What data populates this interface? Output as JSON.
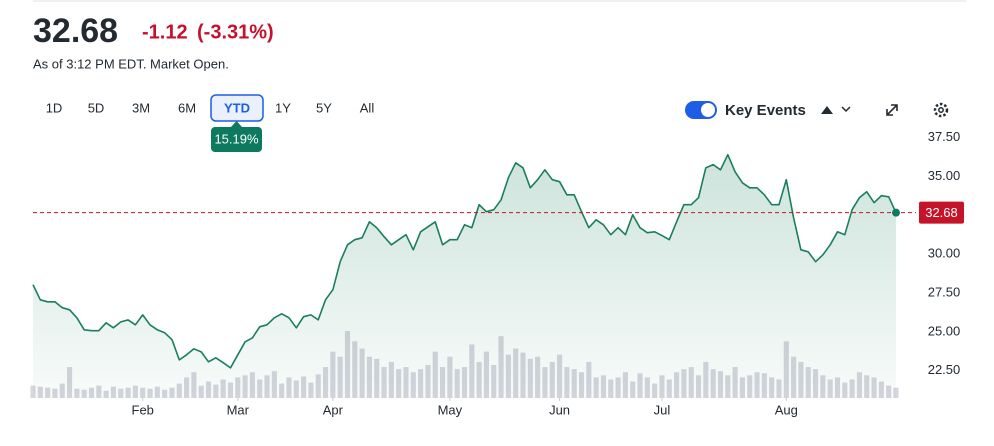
{
  "header": {
    "price": "32.68",
    "change": "-1.12",
    "change_pct": "(-3.31%)",
    "status": "As of 3:12 PM EDT. Market Open."
  },
  "range_buttons": [
    {
      "label": "1D"
    },
    {
      "label": "5D"
    },
    {
      "label": "3M"
    },
    {
      "label": "6M"
    },
    {
      "label": "YTD",
      "selected": true
    },
    {
      "label": "1Y"
    },
    {
      "label": "5Y"
    },
    {
      "label": "All"
    }
  ],
  "range_return": "15.19%",
  "key_events": "Key Events",
  "chart_data": {
    "type": "line",
    "color": "#1a7f5a",
    "volume_color": "#d6d6de",
    "values": [
      28.04,
      27.07,
      26.94,
      26.94,
      26.56,
      26.43,
      25.91,
      25.14,
      25.08,
      25.08,
      25.59,
      25.27,
      25.65,
      25.78,
      25.46,
      26.1,
      25.46,
      25.14,
      24.95,
      24.5,
      23.2,
      23.53,
      23.92,
      23.72,
      23.08,
      23.34,
      23.02,
      22.69,
      23.53,
      24.37,
      24.62,
      25.33,
      25.46,
      25.91,
      26.17,
      25.91,
      25.27,
      25.98,
      26.1,
      25.78,
      27.07,
      27.72,
      29.52,
      30.61,
      30.94,
      31.06,
      32.09,
      31.71,
      31.13,
      30.61,
      30.94,
      31.26,
      30.29,
      31.45,
      31.77,
      32.09,
      30.61,
      30.94,
      30.94,
      31.9,
      31.71,
      33.19,
      32.74,
      32.87,
      33.51,
      34.93,
      35.89,
      35.57,
      34.28,
      34.8,
      35.44,
      34.8,
      34.67,
      33.83,
      33.83,
      32.74,
      31.71,
      32.22,
      31.9,
      31.26,
      31.71,
      31.26,
      32.54,
      31.71,
      31.39,
      31.45,
      31.2,
      30.94,
      32.09,
      33.19,
      33.19,
      33.64,
      35.57,
      35.77,
      35.44,
      36.41,
      35.31,
      34.6,
      34.28,
      34.28,
      33.83,
      33.19,
      33.19,
      34.8,
      32.35,
      30.29,
      30.16,
      29.52,
      29.97,
      30.61,
      31.45,
      31.26,
      32.87,
      33.64,
      34.03,
      33.32,
      33.77,
      33.7,
      32.68
    ],
    "volume": [
      12,
      11,
      10,
      9,
      14,
      30,
      9,
      8,
      10,
      12,
      7,
      11,
      9,
      10,
      12,
      10,
      9,
      11,
      8,
      10,
      14,
      20,
      25,
      12,
      16,
      13,
      18,
      15,
      20,
      22,
      25,
      18,
      22,
      26,
      14,
      20,
      17,
      21,
      15,
      23,
      30,
      45,
      40,
      65,
      55,
      48,
      40,
      38,
      30,
      35,
      28,
      30,
      25,
      28,
      32,
      45,
      30,
      40,
      28,
      30,
      52,
      35,
      45,
      32,
      60,
      42,
      48,
      44,
      38,
      40,
      30,
      35,
      42,
      30,
      28,
      25,
      35,
      20,
      22,
      18,
      20,
      25,
      16,
      24,
      20,
      14,
      22,
      18,
      25,
      28,
      30,
      22,
      35,
      28,
      26,
      22,
      30,
      20,
      22,
      25,
      24,
      20,
      18,
      55,
      40,
      35,
      30,
      28,
      22,
      18,
      20,
      15,
      18,
      25,
      22,
      20,
      16,
      12,
      10
    ],
    "xticks": [
      {
        "value": 15,
        "label": "Feb"
      },
      {
        "value": 28,
        "label": "Mar"
      },
      {
        "value": 41,
        "label": "Apr"
      },
      {
        "value": 57,
        "label": "May"
      },
      {
        "value": 72,
        "label": "Jun"
      },
      {
        "value": 86,
        "label": "Jul"
      },
      {
        "value": 103,
        "label": "Aug"
      }
    ],
    "ylim": [
      20.75,
      38.0
    ],
    "yticks": [
      {
        "value": 22.5,
        "label": "22.50"
      },
      {
        "value": 25,
        "label": "25.00"
      },
      {
        "value": 27.5,
        "label": "27.50"
      },
      {
        "value": 30,
        "label": "30.00"
      },
      {
        "value": 32.5,
        "label": "32.50"
      },
      {
        "value": 35,
        "label": "35.00"
      },
      {
        "value": 37.5,
        "label": "37.50"
      }
    ],
    "last_price": 32.68,
    "last_color": "#c5132a"
  }
}
